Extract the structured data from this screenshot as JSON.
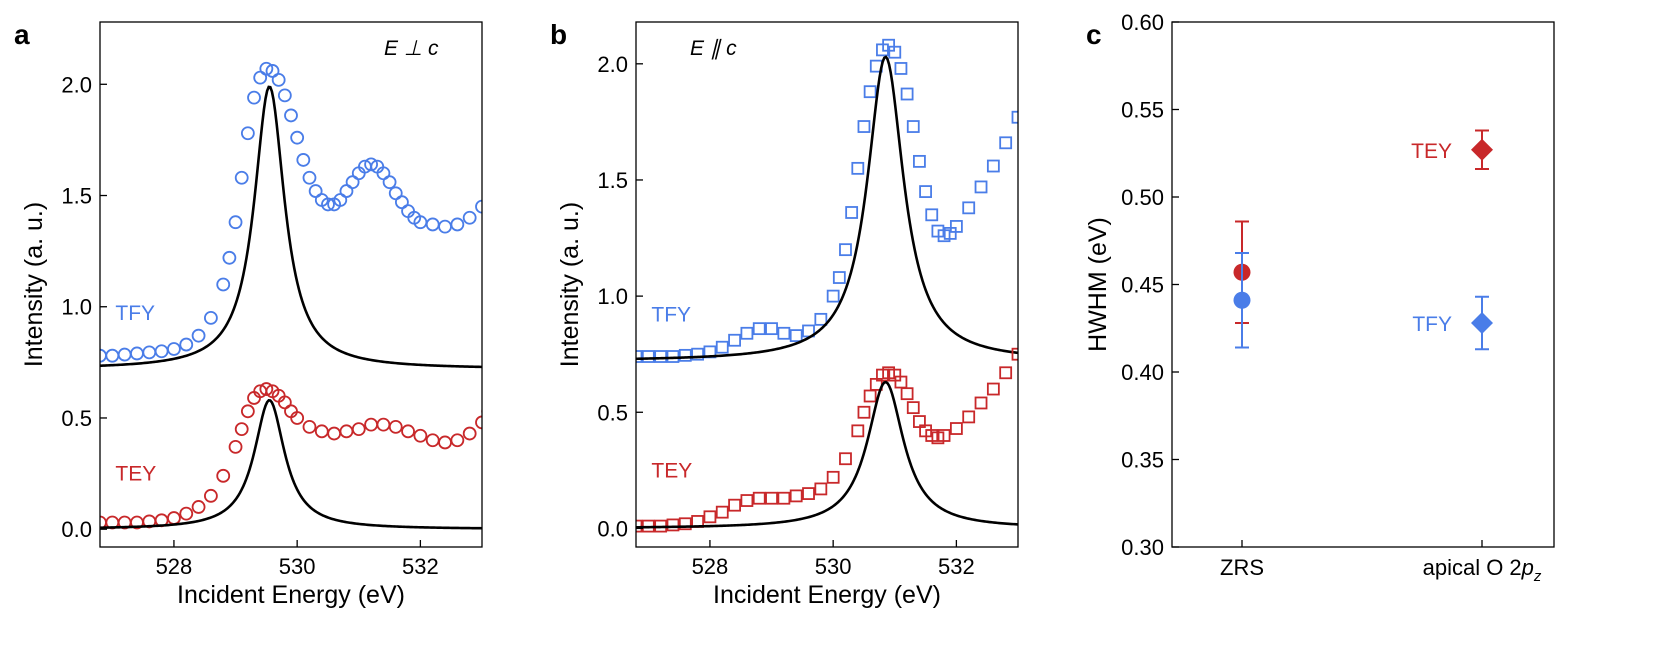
{
  "colors": {
    "tfy": "#4a7de8",
    "tey": "#c8282a",
    "fit": "#000000"
  },
  "chart_data": [
    {
      "panel": "a",
      "type": "scatter",
      "annotation": "E ⊥ c",
      "xlabel": "Incident Energy (eV)",
      "ylabel": "Intensity (a. u.)",
      "xlim": [
        526.8,
        533.0
      ],
      "ylim": [
        -0.08,
        2.28
      ],
      "xticks": [
        528,
        530,
        532
      ],
      "yticks": [
        0.0,
        0.5,
        1.0,
        1.5,
        2.0
      ],
      "ytick_labels": [
        "0.0",
        "0.5",
        "1.0",
        "1.5",
        "2.0"
      ],
      "marker": "circle",
      "series": [
        {
          "name": "TFY",
          "color": "#4a7de8",
          "label_pos": [
            527.05,
            0.94
          ],
          "points": [
            [
              526.8,
              0.78
            ],
            [
              527.0,
              0.78
            ],
            [
              527.2,
              0.785
            ],
            [
              527.4,
              0.79
            ],
            [
              527.6,
              0.795
            ],
            [
              527.8,
              0.8
            ],
            [
              528.0,
              0.81
            ],
            [
              528.2,
              0.83
            ],
            [
              528.4,
              0.87
            ],
            [
              528.6,
              0.95
            ],
            [
              528.8,
              1.1
            ],
            [
              528.9,
              1.22
            ],
            [
              529.0,
              1.38
            ],
            [
              529.1,
              1.58
            ],
            [
              529.2,
              1.78
            ],
            [
              529.3,
              1.94
            ],
            [
              529.4,
              2.03
            ],
            [
              529.5,
              2.07
            ],
            [
              529.6,
              2.06
            ],
            [
              529.7,
              2.02
            ],
            [
              529.8,
              1.95
            ],
            [
              529.9,
              1.86
            ],
            [
              530.0,
              1.76
            ],
            [
              530.1,
              1.66
            ],
            [
              530.2,
              1.58
            ],
            [
              530.3,
              1.52
            ],
            [
              530.4,
              1.48
            ],
            [
              530.5,
              1.46
            ],
            [
              530.6,
              1.46
            ],
            [
              530.7,
              1.48
            ],
            [
              530.8,
              1.52
            ],
            [
              530.9,
              1.56
            ],
            [
              531.0,
              1.6
            ],
            [
              531.1,
              1.63
            ],
            [
              531.2,
              1.64
            ],
            [
              531.3,
              1.63
            ],
            [
              531.4,
              1.6
            ],
            [
              531.5,
              1.56
            ],
            [
              531.6,
              1.51
            ],
            [
              531.7,
              1.47
            ],
            [
              531.8,
              1.43
            ],
            [
              531.9,
              1.4
            ],
            [
              532.0,
              1.38
            ],
            [
              532.2,
              1.37
            ],
            [
              532.4,
              1.36
            ],
            [
              532.6,
              1.37
            ],
            [
              532.8,
              1.4
            ],
            [
              533.0,
              1.45
            ]
          ],
          "fit": {
            "center": 529.55,
            "gamma": 0.3,
            "amp": 1.27,
            "base": 0.72,
            "slope": 0.0
          }
        },
        {
          "name": "TEY",
          "color": "#c8282a",
          "label_pos": [
            527.05,
            0.22
          ],
          "points": [
            [
              526.8,
              0.03
            ],
            [
              527.0,
              0.03
            ],
            [
              527.2,
              0.03
            ],
            [
              527.4,
              0.03
            ],
            [
              527.6,
              0.035
            ],
            [
              527.8,
              0.04
            ],
            [
              528.0,
              0.05
            ],
            [
              528.2,
              0.07
            ],
            [
              528.4,
              0.1
            ],
            [
              528.6,
              0.15
            ],
            [
              528.8,
              0.24
            ],
            [
              529.0,
              0.37
            ],
            [
              529.1,
              0.45
            ],
            [
              529.2,
              0.53
            ],
            [
              529.3,
              0.59
            ],
            [
              529.4,
              0.62
            ],
            [
              529.5,
              0.63
            ],
            [
              529.6,
              0.62
            ],
            [
              529.7,
              0.6
            ],
            [
              529.8,
              0.57
            ],
            [
              529.9,
              0.53
            ],
            [
              530.0,
              0.5
            ],
            [
              530.2,
              0.46
            ],
            [
              530.4,
              0.44
            ],
            [
              530.6,
              0.43
            ],
            [
              530.8,
              0.44
            ],
            [
              531.0,
              0.45
            ],
            [
              531.2,
              0.47
            ],
            [
              531.4,
              0.47
            ],
            [
              531.6,
              0.46
            ],
            [
              531.8,
              0.44
            ],
            [
              532.0,
              0.42
            ],
            [
              532.2,
              0.4
            ],
            [
              532.4,
              0.39
            ],
            [
              532.6,
              0.4
            ],
            [
              532.8,
              0.43
            ],
            [
              533.0,
              0.48
            ],
            [
              533.1,
              0.53
            ],
            [
              533.2,
              0.56
            ]
          ],
          "fit": {
            "center": 529.55,
            "gamma": 0.3,
            "amp": 0.58,
            "base": 0.0,
            "slope": 0.0
          }
        }
      ]
    },
    {
      "panel": "b",
      "type": "scatter",
      "annotation": "E ∥ c",
      "xlabel": "Incident Energy (eV)",
      "ylabel": "Intensity (a. u.)",
      "xlim": [
        526.8,
        533.0
      ],
      "ylim": [
        -0.08,
        2.18
      ],
      "xticks": [
        528,
        530,
        532
      ],
      "yticks": [
        0.0,
        0.5,
        1.0,
        1.5,
        2.0
      ],
      "ytick_labels": [
        "0.0",
        "0.5",
        "1.0",
        "1.5",
        "2.0"
      ],
      "marker": "square",
      "series": [
        {
          "name": "TFY",
          "color": "#4a7de8",
          "label_pos": [
            527.05,
            0.89
          ],
          "points": [
            [
              526.8,
              0.74
            ],
            [
              527.0,
              0.74
            ],
            [
              527.2,
              0.74
            ],
            [
              527.4,
              0.74
            ],
            [
              527.6,
              0.745
            ],
            [
              527.8,
              0.75
            ],
            [
              528.0,
              0.76
            ],
            [
              528.2,
              0.78
            ],
            [
              528.4,
              0.81
            ],
            [
              528.6,
              0.84
            ],
            [
              528.8,
              0.86
            ],
            [
              529.0,
              0.86
            ],
            [
              529.2,
              0.84
            ],
            [
              529.4,
              0.83
            ],
            [
              529.6,
              0.85
            ],
            [
              529.8,
              0.9
            ],
            [
              530.0,
              1.0
            ],
            [
              530.1,
              1.08
            ],
            [
              530.2,
              1.2
            ],
            [
              530.3,
              1.36
            ],
            [
              530.4,
              1.55
            ],
            [
              530.5,
              1.73
            ],
            [
              530.6,
              1.88
            ],
            [
              530.7,
              1.99
            ],
            [
              530.8,
              2.06
            ],
            [
              530.9,
              2.08
            ],
            [
              531.0,
              2.05
            ],
            [
              531.1,
              1.98
            ],
            [
              531.2,
              1.87
            ],
            [
              531.3,
              1.73
            ],
            [
              531.4,
              1.58
            ],
            [
              531.5,
              1.45
            ],
            [
              531.6,
              1.35
            ],
            [
              531.7,
              1.28
            ],
            [
              531.8,
              1.26
            ],
            [
              531.9,
              1.27
            ],
            [
              532.0,
              1.3
            ],
            [
              532.2,
              1.38
            ],
            [
              532.4,
              1.47
            ],
            [
              532.6,
              1.56
            ],
            [
              532.8,
              1.66
            ],
            [
              533.0,
              1.77
            ],
            [
              533.1,
              1.84
            ]
          ],
          "fit": {
            "center": 530.85,
            "gamma": 0.36,
            "amp": 1.31,
            "base": 0.72,
            "slope": 0.0
          }
        },
        {
          "name": "TEY",
          "color": "#c8282a",
          "label_pos": [
            527.05,
            0.22
          ],
          "points": [
            [
              526.8,
              0.01
            ],
            [
              527.0,
              0.01
            ],
            [
              527.2,
              0.01
            ],
            [
              527.4,
              0.015
            ],
            [
              527.6,
              0.02
            ],
            [
              527.8,
              0.03
            ],
            [
              528.0,
              0.05
            ],
            [
              528.2,
              0.07
            ],
            [
              528.4,
              0.1
            ],
            [
              528.6,
              0.12
            ],
            [
              528.8,
              0.13
            ],
            [
              529.0,
              0.13
            ],
            [
              529.2,
              0.13
            ],
            [
              529.4,
              0.14
            ],
            [
              529.6,
              0.15
            ],
            [
              529.8,
              0.17
            ],
            [
              530.0,
              0.22
            ],
            [
              530.2,
              0.3
            ],
            [
              530.4,
              0.42
            ],
            [
              530.5,
              0.5
            ],
            [
              530.6,
              0.57
            ],
            [
              530.7,
              0.62
            ],
            [
              530.8,
              0.66
            ],
            [
              530.9,
              0.67
            ],
            [
              531.0,
              0.66
            ],
            [
              531.1,
              0.63
            ],
            [
              531.2,
              0.58
            ],
            [
              531.3,
              0.52
            ],
            [
              531.4,
              0.46
            ],
            [
              531.5,
              0.42
            ],
            [
              531.6,
              0.4
            ],
            [
              531.7,
              0.39
            ],
            [
              531.8,
              0.4
            ],
            [
              532.0,
              0.43
            ],
            [
              532.2,
              0.48
            ],
            [
              532.4,
              0.54
            ],
            [
              532.6,
              0.6
            ],
            [
              532.8,
              0.67
            ],
            [
              533.0,
              0.75
            ],
            [
              533.1,
              0.82
            ]
          ],
          "fit": {
            "center": 530.85,
            "gamma": 0.36,
            "amp": 0.63,
            "base": 0.0,
            "slope": 0.0
          }
        }
      ]
    },
    {
      "panel": "c",
      "type": "scatter",
      "ylabel": "HWHM (eV)",
      "categories": [
        "ZRS",
        "apical O 2p_z"
      ],
      "category_labels": {
        "base": "apical O 2",
        "italic": "p",
        "sub": "z",
        "zrs": "ZRS"
      },
      "ylim": [
        0.3,
        0.6
      ],
      "yticks": [
        0.3,
        0.35,
        0.4,
        0.45,
        0.5,
        0.55,
        0.6
      ],
      "ytick_labels": [
        "0.30",
        "0.35",
        "0.40",
        "0.45",
        "0.50",
        "0.55",
        "0.60"
      ],
      "series": [
        {
          "name": "TEY",
          "color": "#c8282a",
          "points": [
            {
              "category": "ZRS",
              "value": 0.457,
              "err": 0.029,
              "marker": "circle"
            },
            {
              "category": "apical O 2p_z",
              "value": 0.527,
              "err": 0.011,
              "marker": "diamond",
              "label": "TEY"
            }
          ]
        },
        {
          "name": "TFY",
          "color": "#4a7de8",
          "points": [
            {
              "category": "ZRS",
              "value": 0.441,
              "err": 0.027,
              "marker": "circle"
            },
            {
              "category": "apical O 2p_z",
              "value": 0.428,
              "err": 0.015,
              "marker": "diamond",
              "label": "TFY"
            }
          ]
        }
      ]
    }
  ]
}
